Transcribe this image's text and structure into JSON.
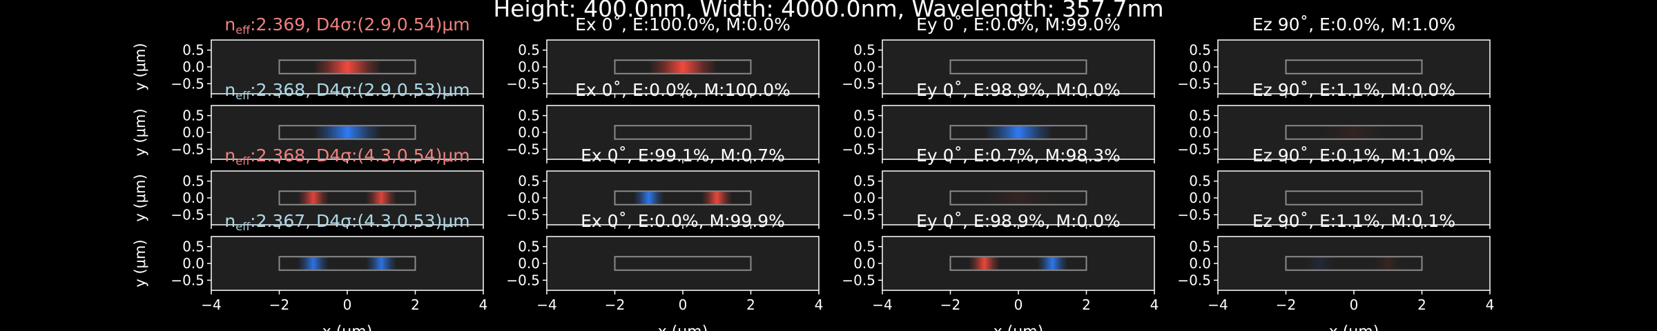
{
  "figure": {
    "suptitle": "Height: 400.0nm, Width: 4000.0nm, Wavelength: 357.7nm",
    "ylabel": "y (μm)",
    "xlabel": "x (μm)",
    "colors": {
      "background": "#000000",
      "panel_bg": "#202020",
      "text": "#ffffff",
      "te_label": "#f08080",
      "tm_label": "#add8e6",
      "positive_field": "#ff4b3e",
      "negative_field": "#2f7fff",
      "waveguide_outline": "#8a8a8a"
    }
  },
  "chart_data": {
    "type": "heatmap",
    "xlim": [
      -4,
      4
    ],
    "ylim": [
      -0.8,
      0.8
    ],
    "xticks": [
      -4,
      -2,
      0,
      2,
      4
    ],
    "yticks": [
      0.5,
      0.0,
      -0.5
    ],
    "ytick_labels": [
      "0.5",
      "0.0",
      "−0.5"
    ],
    "xtick_labels": [
      "−4",
      "−2",
      "0",
      "2",
      "4"
    ],
    "waveguide": {
      "x": [
        -2,
        2
      ],
      "y": [
        -0.2,
        0.2
      ]
    },
    "components": [
      "Ex",
      "Ey",
      "Ez"
    ],
    "rows": [
      {
        "mode_label": "n<sub>eff</sub>:2.369, D4σ:(2.9,0.54)μm",
        "neff_text": "2.369, D4σ:(2.9,0.54)μm",
        "label_color": "te",
        "panels": [
          {
            "title": "",
            "lobes": [
              {
                "cx": 0,
                "sx": 1.0,
                "amp": 0.95,
                "sign": 1
              }
            ]
          },
          {
            "title": "Ex 0˚, E:100.0%, M:0.0%",
            "lobes": [
              {
                "cx": 0,
                "sx": 1.0,
                "amp": 0.95,
                "sign": 1
              }
            ]
          },
          {
            "title": "Ey 0˚, E:0.0%, M:99.0%",
            "lobes": []
          },
          {
            "title": "Ez 90˚, E:0.0%, M:1.0%",
            "lobes": []
          }
        ]
      },
      {
        "mode_label": "n<sub>eff</sub>:2.368, D4σ:(2.9,0.53)μm",
        "neff_text": "2.368, D4σ:(2.9,0.53)μm",
        "label_color": "tm",
        "panels": [
          {
            "title": "",
            "lobes": [
              {
                "cx": 0,
                "sx": 1.0,
                "amp": 0.95,
                "sign": -1
              }
            ]
          },
          {
            "title": "Ex 0˚, E:0.0%, M:100.0%",
            "lobes": []
          },
          {
            "title": "Ey 0˚, E:98.9%, M:0.0%",
            "lobes": [
              {
                "cx": 0,
                "sx": 1.0,
                "amp": 0.95,
                "sign": -1
              }
            ]
          },
          {
            "title": "Ez 90˚, E:1.1%, M:0.0%",
            "lobes": [
              {
                "cx": 0,
                "sx": 1.0,
                "amp": 0.08,
                "sign": 1
              }
            ]
          }
        ]
      },
      {
        "mode_label": "n<sub>eff</sub>:2.368, D4σ:(4.3,0.54)μm",
        "neff_text": "2.368, D4σ:(4.3,0.54)μm",
        "label_color": "te",
        "panels": [
          {
            "title": "",
            "lobes": [
              {
                "cx": -1.0,
                "sx": 0.45,
                "amp": 0.85,
                "sign": 1
              },
              {
                "cx": 1.0,
                "sx": 0.45,
                "amp": 0.85,
                "sign": 1
              }
            ]
          },
          {
            "title": "Ex 0˚, E:99.1%, M:0.7%",
            "lobes": [
              {
                "cx": -1.0,
                "sx": 0.45,
                "amp": 0.9,
                "sign": -1
              },
              {
                "cx": 1.0,
                "sx": 0.45,
                "amp": 0.9,
                "sign": 1
              }
            ]
          },
          {
            "title": "Ey 0˚, E:0.7%, M:98.3%",
            "lobes": [
              {
                "cx": 0,
                "sx": 1.2,
                "amp": 0.08,
                "sign": 1
              }
            ]
          },
          {
            "title": "Ez 90˚, E:0.1%, M:1.0%",
            "lobes": []
          }
        ]
      },
      {
        "mode_label": "n<sub>eff</sub>:2.367, D4σ:(4.3,0.53)μm",
        "neff_text": "2.367, D4σ:(4.3,0.53)μm",
        "label_color": "tm",
        "panels": [
          {
            "title": "",
            "lobes": [
              {
                "cx": -1.0,
                "sx": 0.45,
                "amp": 0.85,
                "sign": -1
              },
              {
                "cx": 1.0,
                "sx": 0.45,
                "amp": 0.85,
                "sign": -1
              }
            ]
          },
          {
            "title": "Ex 0˚, E:0.0%, M:99.9%",
            "lobes": []
          },
          {
            "title": "Ey 0˚, E:98.9%, M:0.0%",
            "lobes": [
              {
                "cx": -1.0,
                "sx": 0.45,
                "amp": 0.9,
                "sign": 1
              },
              {
                "cx": 1.0,
                "sx": 0.45,
                "amp": 0.9,
                "sign": -1
              }
            ]
          },
          {
            "title": "Ez 90˚, E:1.1%, M:0.1%",
            "lobes": [
              {
                "cx": -1.0,
                "sx": 0.45,
                "amp": 0.1,
                "sign": -1
              },
              {
                "cx": 1.0,
                "sx": 0.45,
                "amp": 0.1,
                "sign": 1
              }
            ]
          }
        ]
      }
    ]
  }
}
